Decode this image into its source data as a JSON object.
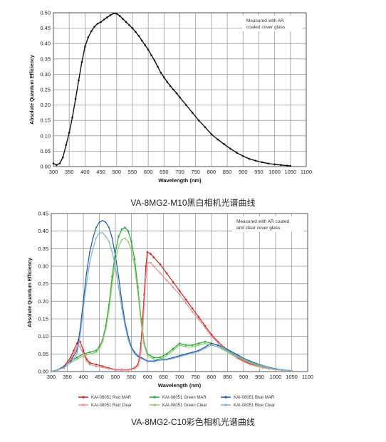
{
  "captions": {
    "mono": "VA-8MG2-M10黑白相机光谱曲线",
    "color": "VA-8MG2-C10彩色相机光谱曲线"
  },
  "chart_data": [
    {
      "type": "line",
      "xlabel": "Wavelength (nm)",
      "ylabel": "Absolute Quantum Efficiency",
      "xlim": [
        300,
        1100
      ],
      "ylim": [
        0,
        0.5
      ],
      "xticks": [
        300,
        350,
        400,
        450,
        500,
        550,
        600,
        650,
        700,
        750,
        800,
        850,
        900,
        950,
        1000,
        1050,
        1100
      ],
      "yticks": [
        0,
        0.05,
        0.1,
        0.15,
        0.2,
        0.25,
        0.3,
        0.35,
        0.4,
        0.45,
        0.5
      ],
      "grid": true,
      "annotation": [
        "Measured with AR",
        "coated cover glass"
      ],
      "series": [
        {
          "color": "#111111",
          "x": [
            300,
            310,
            320,
            330,
            340,
            350,
            360,
            370,
            380,
            390,
            400,
            410,
            420,
            430,
            440,
            450,
            460,
            470,
            480,
            490,
            500,
            510,
            520,
            530,
            540,
            550,
            560,
            570,
            580,
            590,
            600,
            610,
            620,
            630,
            640,
            650,
            660,
            670,
            680,
            690,
            700,
            720,
            740,
            760,
            780,
            800,
            820,
            840,
            860,
            880,
            900,
            920,
            940,
            960,
            980,
            1000,
            1020,
            1040,
            1050
          ],
          "y": [
            0.01,
            0.005,
            0.01,
            0.03,
            0.07,
            0.11,
            0.16,
            0.22,
            0.28,
            0.34,
            0.39,
            0.42,
            0.44,
            0.455,
            0.465,
            0.47,
            0.478,
            0.485,
            0.492,
            0.498,
            0.497,
            0.49,
            0.48,
            0.47,
            0.46,
            0.45,
            0.438,
            0.425,
            0.41,
            0.395,
            0.38,
            0.362,
            0.345,
            0.325,
            0.305,
            0.29,
            0.275,
            0.262,
            0.25,
            0.238,
            0.225,
            0.2,
            0.175,
            0.15,
            0.128,
            0.105,
            0.088,
            0.073,
            0.058,
            0.045,
            0.034,
            0.025,
            0.019,
            0.014,
            0.01,
            0.007,
            0.005,
            0.003,
            0.002
          ]
        }
      ]
    },
    {
      "type": "line",
      "xlabel": "Wavelength (nm)",
      "ylabel": "Absolute Quantum Efficiency",
      "xlim": [
        300,
        1100
      ],
      "ylim": [
        0,
        0.45
      ],
      "xticks": [
        300,
        350,
        400,
        450,
        500,
        550,
        600,
        650,
        700,
        750,
        800,
        850,
        900,
        950,
        1000,
        1050,
        1100
      ],
      "yticks": [
        0,
        0.05,
        0.1,
        0.15,
        0.2,
        0.25,
        0.3,
        0.35,
        0.4,
        0.45
      ],
      "grid": true,
      "legend": "bottom",
      "annotation": [
        "Measured with AR coated",
        "and clear cover glass"
      ],
      "series": [
        {
          "name": "KAI-08051 Red MAR",
          "color": "#d42020",
          "marker": true,
          "x": [
            300,
            320,
            340,
            360,
            370,
            380,
            385,
            390,
            400,
            410,
            420,
            440,
            460,
            480,
            500,
            520,
            540,
            560,
            570,
            575,
            580,
            585,
            590,
            595,
            600,
            610,
            620,
            640,
            660,
            680,
            700,
            720,
            740,
            760,
            780,
            800,
            820,
            840,
            860,
            880,
            900,
            920,
            940,
            960,
            980,
            1000,
            1020,
            1040,
            1050
          ],
          "y": [
            0.0,
            0.005,
            0.015,
            0.04,
            0.06,
            0.08,
            0.09,
            0.085,
            0.06,
            0.035,
            0.025,
            0.02,
            0.015,
            0.01,
            0.005,
            0.005,
            0.005,
            0.01,
            0.02,
            0.04,
            0.08,
            0.15,
            0.22,
            0.3,
            0.34,
            0.335,
            0.325,
            0.305,
            0.28,
            0.255,
            0.23,
            0.205,
            0.18,
            0.155,
            0.13,
            0.105,
            0.085,
            0.068,
            0.053,
            0.04,
            0.03,
            0.022,
            0.016,
            0.012,
            0.008,
            0.006,
            0.004,
            0.003,
            0.002
          ]
        },
        {
          "name": "KAI-08051 Green MAR",
          "color": "#22aa33",
          "marker": true,
          "x": [
            300,
            320,
            340,
            360,
            380,
            400,
            420,
            440,
            450,
            460,
            470,
            480,
            490,
            500,
            510,
            520,
            530,
            540,
            550,
            560,
            570,
            580,
            590,
            600,
            620,
            640,
            660,
            680,
            700,
            720,
            740,
            760,
            780,
            800,
            820,
            840,
            860,
            880,
            900,
            920,
            940,
            960,
            980,
            1000,
            1020,
            1040,
            1050
          ],
          "y": [
            0.0,
            0.005,
            0.015,
            0.03,
            0.04,
            0.05,
            0.055,
            0.06,
            0.07,
            0.09,
            0.13,
            0.19,
            0.27,
            0.34,
            0.385,
            0.405,
            0.41,
            0.4,
            0.37,
            0.32,
            0.24,
            0.15,
            0.08,
            0.05,
            0.04,
            0.04,
            0.05,
            0.065,
            0.08,
            0.075,
            0.075,
            0.08,
            0.085,
            0.08,
            0.075,
            0.065,
            0.055,
            0.045,
            0.035,
            0.027,
            0.02,
            0.015,
            0.01,
            0.007,
            0.005,
            0.003,
            0.002
          ]
        },
        {
          "name": "KAI-08051 Blue MAR",
          "color": "#1a55a8",
          "marker": false,
          "x": [
            300,
            320,
            340,
            360,
            380,
            390,
            400,
            410,
            420,
            430,
            440,
            450,
            460,
            470,
            480,
            490,
            500,
            510,
            520,
            530,
            540,
            550,
            560,
            570,
            580,
            590,
            600,
            620,
            640,
            660,
            680,
            700,
            720,
            740,
            760,
            780,
            800,
            820,
            840,
            860,
            880,
            900,
            920,
            940,
            960,
            980,
            1000,
            1020,
            1040,
            1050
          ],
          "y": [
            0.0,
            0.005,
            0.015,
            0.03,
            0.06,
            0.12,
            0.2,
            0.28,
            0.34,
            0.38,
            0.41,
            0.425,
            0.43,
            0.425,
            0.41,
            0.38,
            0.33,
            0.27,
            0.2,
            0.14,
            0.1,
            0.07,
            0.055,
            0.045,
            0.04,
            0.035,
            0.03,
            0.03,
            0.035,
            0.035,
            0.04,
            0.045,
            0.05,
            0.055,
            0.06,
            0.07,
            0.08,
            0.075,
            0.068,
            0.058,
            0.048,
            0.038,
            0.03,
            0.023,
            0.017,
            0.012,
            0.008,
            0.005,
            0.003,
            0.002
          ]
        },
        {
          "name": "KAI-08051 Red Clear",
          "color": "#f09090",
          "marker": true,
          "x": [
            300,
            320,
            340,
            360,
            370,
            380,
            385,
            390,
            400,
            410,
            420,
            440,
            460,
            480,
            500,
            520,
            540,
            560,
            570,
            575,
            580,
            585,
            590,
            595,
            600,
            610,
            620,
            640,
            660,
            680,
            700,
            720,
            740,
            760,
            780,
            800,
            820,
            840,
            860,
            880,
            900,
            920,
            940,
            960,
            980,
            1000,
            1020,
            1040,
            1050
          ],
          "y": [
            0.0,
            0.005,
            0.01,
            0.035,
            0.05,
            0.07,
            0.075,
            0.07,
            0.05,
            0.03,
            0.02,
            0.015,
            0.012,
            0.008,
            0.004,
            0.004,
            0.004,
            0.008,
            0.016,
            0.03,
            0.06,
            0.12,
            0.19,
            0.27,
            0.31,
            0.31,
            0.3,
            0.28,
            0.26,
            0.24,
            0.22,
            0.195,
            0.17,
            0.148,
            0.125,
            0.1,
            0.082,
            0.065,
            0.05,
            0.038,
            0.028,
            0.02,
            0.015,
            0.011,
            0.008,
            0.005,
            0.004,
            0.003,
            0.002
          ]
        },
        {
          "name": "KAI-08051 Green Clear",
          "color": "#88cc66",
          "marker": false,
          "x": [
            300,
            320,
            340,
            360,
            380,
            400,
            420,
            440,
            450,
            460,
            470,
            480,
            490,
            500,
            510,
            520,
            530,
            540,
            550,
            560,
            570,
            580,
            590,
            600,
            620,
            640,
            660,
            680,
            700,
            720,
            740,
            760,
            780,
            800,
            820,
            840,
            860,
            880,
            900,
            920,
            940,
            960,
            980,
            1000,
            1020,
            1040,
            1050
          ],
          "y": [
            0.0,
            0.005,
            0.012,
            0.025,
            0.035,
            0.045,
            0.05,
            0.055,
            0.065,
            0.085,
            0.12,
            0.175,
            0.25,
            0.315,
            0.355,
            0.375,
            0.38,
            0.37,
            0.345,
            0.3,
            0.225,
            0.14,
            0.075,
            0.045,
            0.035,
            0.035,
            0.045,
            0.06,
            0.075,
            0.07,
            0.07,
            0.075,
            0.08,
            0.075,
            0.07,
            0.06,
            0.05,
            0.042,
            0.033,
            0.025,
            0.018,
            0.013,
            0.009,
            0.006,
            0.004,
            0.003,
            0.002
          ]
        },
        {
          "name": "KAI-08051 Blue Clear",
          "color": "#7aaedc",
          "marker": false,
          "x": [
            300,
            320,
            340,
            360,
            380,
            390,
            400,
            410,
            420,
            430,
            440,
            450,
            460,
            470,
            480,
            490,
            500,
            510,
            520,
            530,
            540,
            550,
            560,
            570,
            580,
            590,
            600,
            620,
            640,
            660,
            680,
            700,
            720,
            740,
            760,
            780,
            800,
            820,
            840,
            860,
            880,
            900,
            920,
            940,
            960,
            980,
            1000,
            1020,
            1040,
            1050
          ],
          "y": [
            0.0,
            0.005,
            0.012,
            0.025,
            0.05,
            0.1,
            0.18,
            0.25,
            0.31,
            0.35,
            0.38,
            0.395,
            0.395,
            0.385,
            0.37,
            0.34,
            0.3,
            0.24,
            0.18,
            0.13,
            0.09,
            0.065,
            0.05,
            0.042,
            0.037,
            0.033,
            0.028,
            0.028,
            0.032,
            0.033,
            0.037,
            0.042,
            0.047,
            0.052,
            0.057,
            0.066,
            0.075,
            0.07,
            0.063,
            0.054,
            0.045,
            0.036,
            0.028,
            0.021,
            0.016,
            0.011,
            0.007,
            0.005,
            0.003,
            0.002
          ]
        }
      ]
    }
  ]
}
